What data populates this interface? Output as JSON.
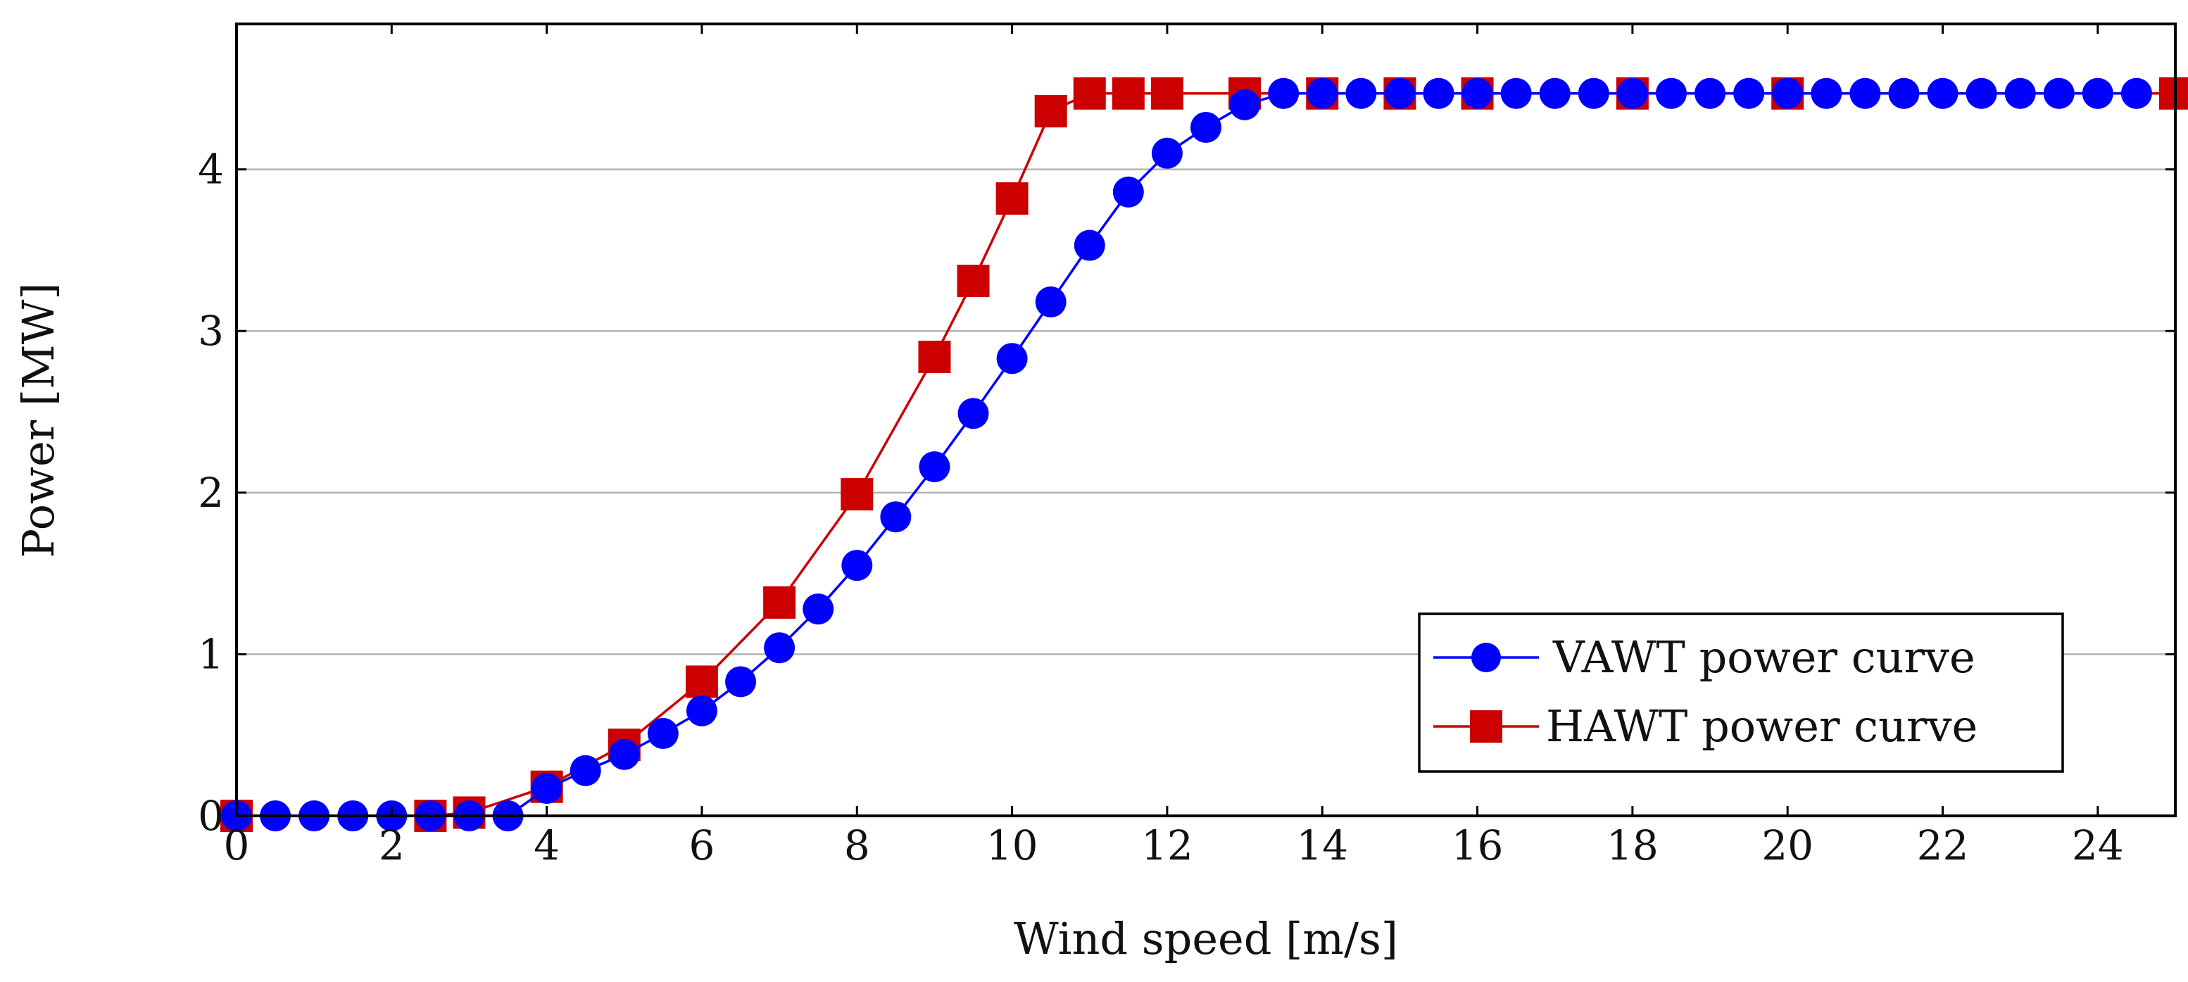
{
  "chart_data": {
    "type": "line",
    "title": "",
    "xlabel": "Wind speed [m/s]",
    "ylabel": "Power [MW]",
    "xlim": [
      0,
      25
    ],
    "ylim": [
      0,
      4.9
    ],
    "xticks": [
      0,
      2,
      4,
      6,
      8,
      10,
      12,
      14,
      16,
      18,
      20,
      22,
      24
    ],
    "yticks": [
      0,
      1,
      2,
      3,
      4
    ],
    "grid": "horizontal",
    "legend_position": "lower-right",
    "colors": {
      "vawt": "#0000ff",
      "hawt": "#cc0000",
      "grid": "#b3b3b3",
      "axis": "#000000"
    },
    "series": [
      {
        "name": "VAWT power curve",
        "marker": "circle",
        "x": [
          0,
          0.5,
          1,
          1.5,
          2,
          2.5,
          3,
          3.5,
          4,
          4.5,
          5,
          5.5,
          6,
          6.5,
          7,
          7.5,
          8,
          8.5,
          9,
          9.5,
          10,
          10.5,
          11,
          11.5,
          12,
          12.5,
          13,
          13.5,
          14,
          14.5,
          15,
          15.5,
          16,
          16.5,
          17,
          17.5,
          18,
          18.5,
          19,
          19.5,
          20,
          20.5,
          21,
          21.5,
          22,
          22.5,
          23,
          23.5,
          24,
          24.5
        ],
        "y": [
          0,
          0,
          0,
          0,
          0,
          0,
          0,
          0,
          0.17,
          0.28,
          0.38,
          0.51,
          0.65,
          0.83,
          1.04,
          1.28,
          1.55,
          1.85,
          2.16,
          2.49,
          2.83,
          3.18,
          3.53,
          3.86,
          4.1,
          4.26,
          4.4,
          4.47,
          4.47,
          4.47,
          4.47,
          4.47,
          4.47,
          4.47,
          4.47,
          4.47,
          4.47,
          4.47,
          4.47,
          4.47,
          4.47,
          4.47,
          4.47,
          4.47,
          4.47,
          4.47,
          4.47,
          4.47,
          4.47,
          4.47
        ]
      },
      {
        "name": "HAWT power curve",
        "marker": "square",
        "x": [
          0,
          2.5,
          3,
          4,
          5,
          6,
          7,
          8,
          9,
          9.5,
          10,
          10.5,
          11,
          11.5,
          12,
          13,
          14,
          15,
          16,
          18,
          20,
          25
        ],
        "y": [
          0,
          0,
          0.02,
          0.18,
          0.44,
          0.83,
          1.32,
          1.99,
          2.84,
          3.31,
          3.82,
          4.36,
          4.47,
          4.47,
          4.47,
          4.47,
          4.47,
          4.47,
          4.47,
          4.47,
          4.47,
          4.47
        ]
      }
    ]
  }
}
